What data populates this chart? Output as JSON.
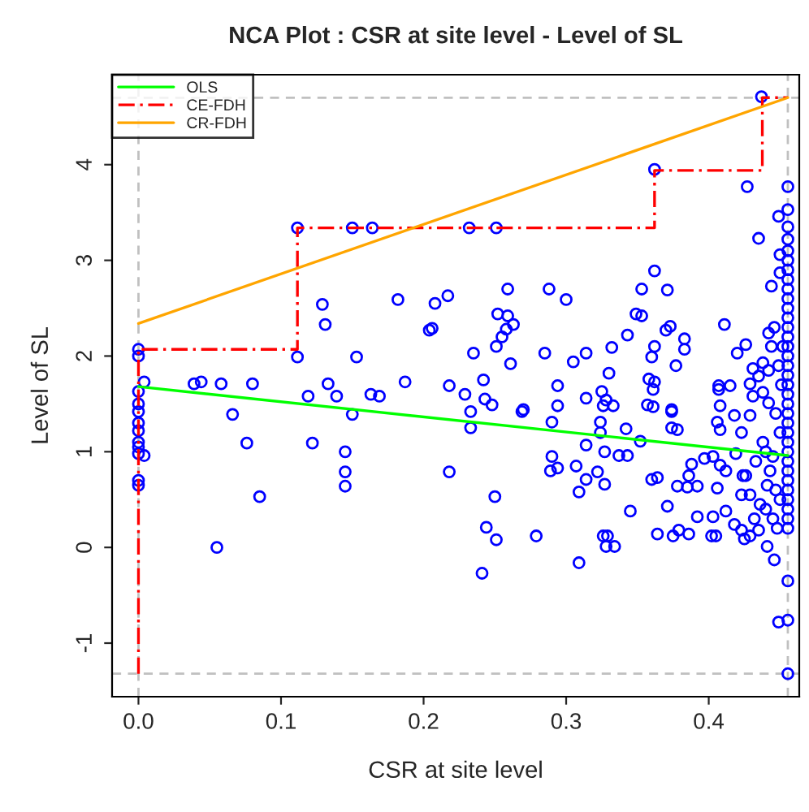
{
  "chart_data": {
    "type": "scatter",
    "title": "NCA Plot : CSR at site level - Level of SL",
    "xlabel": "CSR at site level",
    "ylabel": "Level of SL",
    "xlim": [
      -0.0185,
      0.4635
    ],
    "ylim": [
      -1.56,
      4.94
    ],
    "xticks": [
      {
        "value": 0,
        "label": "0.0"
      },
      0.1,
      0.2,
      0.3,
      0.4
    ],
    "yticks": [
      -1,
      0,
      1,
      2,
      3,
      4
    ],
    "grid": false,
    "legend": "top left",
    "ref_lines": [
      {
        "axis": "x",
        "value": 0,
        "color": "#c0c0c0",
        "line_style": "dashed"
      },
      {
        "axis": "x",
        "value": 0.4555,
        "color": "#c0c0c0",
        "line_style": "dashed"
      },
      {
        "axis": "y",
        "value": 4.7,
        "color": "#c0c0c0",
        "line_style": "dashed"
      },
      {
        "axis": "y",
        "value": -1.32,
        "color": "#c0c0c0",
        "line_style": "dashed"
      }
    ],
    "series": [
      {
        "marker": "circle",
        "color": "#0000ff",
        "x": [
          0,
          0,
          0,
          0,
          0,
          0,
          0,
          0,
          0,
          0,
          0,
          0,
          0.004,
          0.004,
          0.1115,
          0.15,
          0.164,
          0.232,
          0.251,
          0.362,
          0.437,
          0.427,
          0.435,
          0.362,
          0.353,
          0.371,
          0.259,
          0.288,
          0.3,
          0.217,
          0.252,
          0.259,
          0.263,
          0.258,
          0.255,
          0.251,
          0.235,
          0.261,
          0.285,
          0.305,
          0.314,
          0.332,
          0.343,
          0.349,
          0.353,
          0.37,
          0.373,
          0.362,
          0.36,
          0.383,
          0.383,
          0.377,
          0.411,
          0.426,
          0.42,
          0.33,
          0.294,
          0.242,
          0.229,
          0.218,
          0.314,
          0.325,
          0.328,
          0.358,
          0.362,
          0.361,
          0.407,
          0.415,
          0.129,
          0.131,
          0.1115,
          0.153,
          0.182,
          0.208,
          0.204,
          0.206,
          0.039,
          0.044,
          0.058,
          0.08,
          0.119,
          0.133,
          0.139,
          0.163,
          0.169,
          0.187,
          0.066,
          0.15,
          0.076,
          0.122,
          0.145,
          0.145,
          0.145,
          0.218,
          0.085,
          0.055,
          0.25,
          0.244,
          0.251,
          0.241,
          0.279,
          0.309,
          0.309,
          0.307,
          0.314,
          0.322,
          0.327,
          0.29,
          0.294,
          0.289,
          0.314,
          0.327,
          0.337,
          0.343,
          0.326,
          0.329,
          0.328,
          0.334,
          0.345,
          0.36,
          0.364,
          0.364,
          0.371,
          0.375,
          0.379,
          0.386,
          0.378,
          0.385,
          0.392,
          0.386,
          0.388,
          0.397,
          0.403,
          0.406,
          0.392,
          0.402,
          0.405,
          0.403,
          0.412,
          0.408,
          0.412,
          0.419,
          0.418,
          0.423,
          0.423,
          0.429,
          0.425,
          0.429,
          0.435,
          0.441,
          0.446,
          0.449,
          0.4555,
          0.4555,
          0.4555,
          0.426,
          0.424,
          0.233,
          0.233,
          0.269,
          0.29,
          0.324,
          0.324,
          0.342,
          0.352,
          0.374,
          0.374,
          0.378,
          0.406,
          0.408,
          0.418,
          0.429,
          0.423,
          0.243,
          0.248,
          0.27,
          0.294,
          0.326,
          0.333,
          0.357,
          0.361,
          0.374,
          0.407,
          0.408,
          0.431,
          0.435,
          0.438,
          0.442,
          0.429,
          0.431,
          0.438,
          0.442,
          0.442,
          0.446,
          0.444,
          0.449,
          0.45,
          0.45,
          0.444,
          0.4555,
          0.4555,
          0.4555,
          0.4555,
          0.4555,
          0.4555,
          0.4555,
          0.4555,
          0.4555,
          0.4555,
          0.4555,
          0.4555,
          0.4555,
          0.4555,
          0.4555,
          0.4555,
          0.4555,
          0.4555,
          0.4555,
          0.4555,
          0.4555,
          0.4555,
          0.4555,
          0.4555,
          0.4555,
          0.4555,
          0.4555,
          0.4555,
          0.4555,
          0.4555,
          0.4555,
          0.4555,
          0.4555,
          0.4555,
          0.44,
          0.443,
          0.447,
          0.44,
          0.445,
          0.45,
          0.447,
          0.438,
          0.433,
          0.436,
          0.432,
          0.448,
          0.451,
          0.449,
          0.452,
          0.445,
          0.441,
          0.45
        ],
        "values": [
          2.07,
          2.0,
          1.63,
          1.5,
          1.42,
          1.3,
          1.22,
          1.1,
          1.05,
          0.98,
          0.7,
          0.65,
          1.73,
          0.96,
          3.34,
          3.34,
          3.34,
          3.34,
          3.34,
          3.95,
          4.71,
          3.77,
          3.23,
          2.89,
          2.7,
          2.69,
          2.7,
          2.7,
          2.59,
          2.63,
          2.44,
          2.42,
          2.33,
          2.28,
          2.2,
          2.1,
          2.03,
          1.92,
          2.03,
          1.94,
          2.03,
          2.09,
          2.22,
          2.44,
          2.42,
          2.27,
          2.31,
          2.1,
          1.99,
          2.18,
          2.07,
          1.9,
          2.33,
          2.12,
          2.03,
          1.82,
          1.69,
          1.75,
          1.6,
          1.69,
          1.56,
          1.63,
          1.54,
          1.76,
          1.73,
          1.65,
          1.69,
          1.69,
          2.54,
          2.33,
          1.99,
          1.99,
          2.59,
          2.55,
          2.27,
          2.29,
          1.71,
          1.73,
          1.71,
          1.71,
          1.58,
          1.71,
          1.58,
          1.6,
          1.58,
          1.73,
          1.39,
          1.39,
          1.09,
          1.09,
          1.0,
          0.79,
          0.64,
          0.79,
          0.53,
          0.0,
          0.53,
          0.21,
          0.08,
          -0.27,
          0.12,
          -0.16,
          0.58,
          0.85,
          0.71,
          0.79,
          0.66,
          0.95,
          0.83,
          0.8,
          1.07,
          1.0,
          0.96,
          0.96,
          0.12,
          0.12,
          0.01,
          0.01,
          0.38,
          0.71,
          0.73,
          0.14,
          0.43,
          0.12,
          0.18,
          0.14,
          0.64,
          0.63,
          0.64,
          0.75,
          0.87,
          0.93,
          0.95,
          0.62,
          0.32,
          0.12,
          0.12,
          0.32,
          0.38,
          0.86,
          0.8,
          0.98,
          0.24,
          0.18,
          0.55,
          0.55,
          0.09,
          0.12,
          0.18,
          0.01,
          -0.13,
          -0.78,
          -0.76,
          -0.35,
          -1.32,
          0.75,
          0.75,
          1.42,
          1.25,
          1.42,
          1.31,
          1.31,
          1.2,
          1.24,
          1.11,
          1.42,
          1.25,
          1.23,
          1.31,
          1.23,
          1.38,
          1.38,
          1.2,
          1.55,
          1.49,
          1.44,
          1.48,
          1.48,
          1.48,
          1.49,
          1.47,
          1.44,
          1.65,
          1.48,
          1.87,
          1.79,
          1.93,
          1.85,
          1.71,
          1.58,
          1.62,
          1.51,
          2.24,
          2.3,
          2.1,
          3.46,
          3.06,
          2.87,
          2.73,
          3.77,
          3.53,
          3.35,
          3.22,
          3.1,
          3.0,
          2.9,
          2.8,
          2.7,
          2.6,
          2.5,
          2.4,
          2.3,
          2.2,
          2.1,
          2.0,
          1.9,
          1.8,
          1.7,
          1.6,
          1.5,
          1.4,
          1.3,
          1.2,
          1.1,
          1.0,
          0.9,
          0.8,
          0.7,
          0.6,
          0.5,
          0.4,
          0.3,
          0.2,
          1.0,
          0.8,
          0.6,
          0.4,
          0.3,
          1.2,
          1.4,
          1.1,
          0.9,
          0.45,
          0.3,
          0.2,
          1.7,
          1.9,
          2.1,
          0.95,
          0.65,
          0.5
        ]
      },
      {
        "type": "line",
        "name": "OLS",
        "color": "#00ff00",
        "line_style": "solid",
        "marker": "none",
        "x": [
          0,
          0.4555
        ],
        "values": [
          1.68,
          0.96
        ]
      },
      {
        "type": "line",
        "name": "CE-FDH",
        "color": "#ff0000",
        "line_style": "dashdot",
        "marker": "none",
        "x": [
          0,
          0,
          0.1115,
          0.1115,
          0.362,
          0.362,
          0.4376,
          0.4376,
          0.4555
        ],
        "values": [
          -1.32,
          2.07,
          2.07,
          3.34,
          3.34,
          3.94,
          3.94,
          4.7,
          4.7
        ]
      },
      {
        "type": "line",
        "name": "CR-FDH",
        "color": "#ffa500",
        "line_style": "solid",
        "marker": "none",
        "x": [
          0,
          0.4555
        ],
        "values": [
          2.34,
          4.7
        ]
      }
    ]
  }
}
